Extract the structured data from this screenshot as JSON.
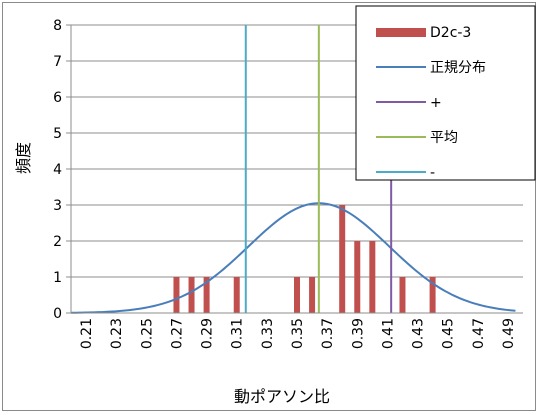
{
  "chart_data": {
    "type": "bar",
    "title": "",
    "xlabel": "動ポアソン比",
    "ylabel": "頻度",
    "ylim": [
      0,
      8
    ],
    "yticks": [
      "0",
      "1",
      "2",
      "3",
      "4",
      "5",
      "6",
      "7",
      "8"
    ],
    "xlim": [
      0.2,
      0.5
    ],
    "xticks": [
      "0.21",
      "0.23",
      "0.25",
      "0.27",
      "0.29",
      "0.31",
      "0.33",
      "0.35",
      "0.37",
      "0.39",
      "0.41",
      "0.43",
      "0.45",
      "0.47",
      "0.49"
    ],
    "grid": true,
    "legend_position": "top-right",
    "histogram": {
      "name": "D2c-3",
      "color": "#c0504d",
      "x": [
        0.27,
        0.28,
        0.29,
        0.31,
        0.35,
        0.36,
        0.38,
        0.39,
        0.4,
        0.42,
        0.44
      ],
      "values": [
        1,
        1,
        1,
        1,
        1,
        1,
        3,
        2,
        2,
        1,
        1
      ]
    },
    "normal_curve": {
      "name": "正規分布",
      "color": "#4a7ebb",
      "mean": 0.3645,
      "sd": 0.0467,
      "peak": 3.05,
      "x_start": 0.2,
      "x_end": 0.495
    },
    "vlines": [
      {
        "name": "+",
        "x": 0.4125,
        "color": "#7f5ba6"
      },
      {
        "name": "平均",
        "x": 0.3645,
        "color": "#9bbb59"
      },
      {
        "name": "-",
        "x": 0.316,
        "color": "#4bacc6"
      }
    ]
  }
}
